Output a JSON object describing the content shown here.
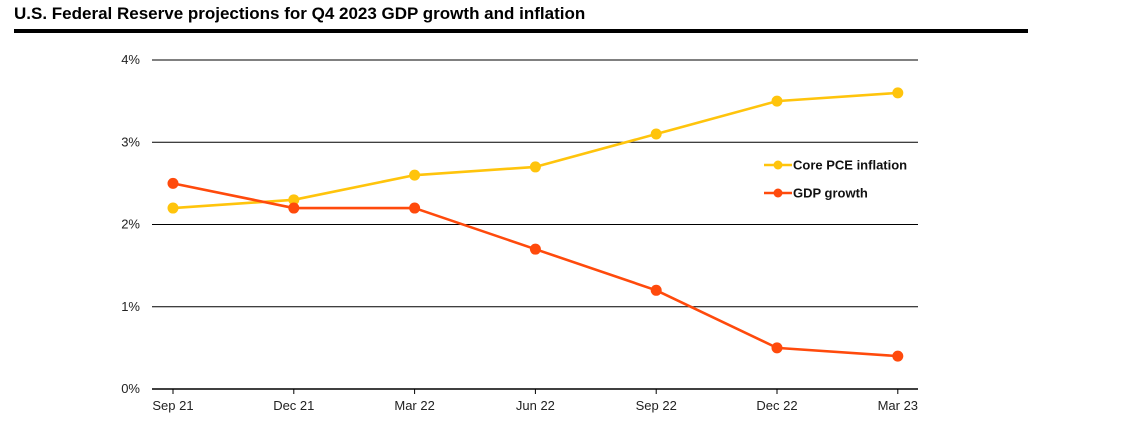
{
  "title": "U.S. Federal Reserve projections for Q4 2023 GDP growth and inflation",
  "colors": {
    "core_pce": "#FFC40C",
    "gdp": "#FF4A0C",
    "grid": "#000000"
  },
  "chart_data": {
    "type": "line",
    "title": "U.S. Federal Reserve projections for Q4 2023 GDP growth and inflation",
    "xlabel": "",
    "ylabel": "",
    "categories": [
      "Sep 21",
      "Dec 21",
      "Mar 22",
      "Jun 22",
      "Sep 22",
      "Dec 22",
      "Mar 23"
    ],
    "y_ticks": [
      "0%",
      "1%",
      "2%",
      "3%",
      "4%"
    ],
    "ylim": [
      0,
      4
    ],
    "grid": "horizontal",
    "legend_position": "right",
    "series": [
      {
        "name": "Core PCE inflation",
        "color": "#FFC40C",
        "values": [
          2.2,
          2.3,
          2.6,
          2.7,
          3.1,
          3.5,
          3.6
        ]
      },
      {
        "name": "GDP growth",
        "color": "#FF4A0C",
        "values": [
          2.5,
          2.2,
          2.2,
          1.7,
          1.2,
          0.5,
          0.4
        ]
      }
    ]
  }
}
